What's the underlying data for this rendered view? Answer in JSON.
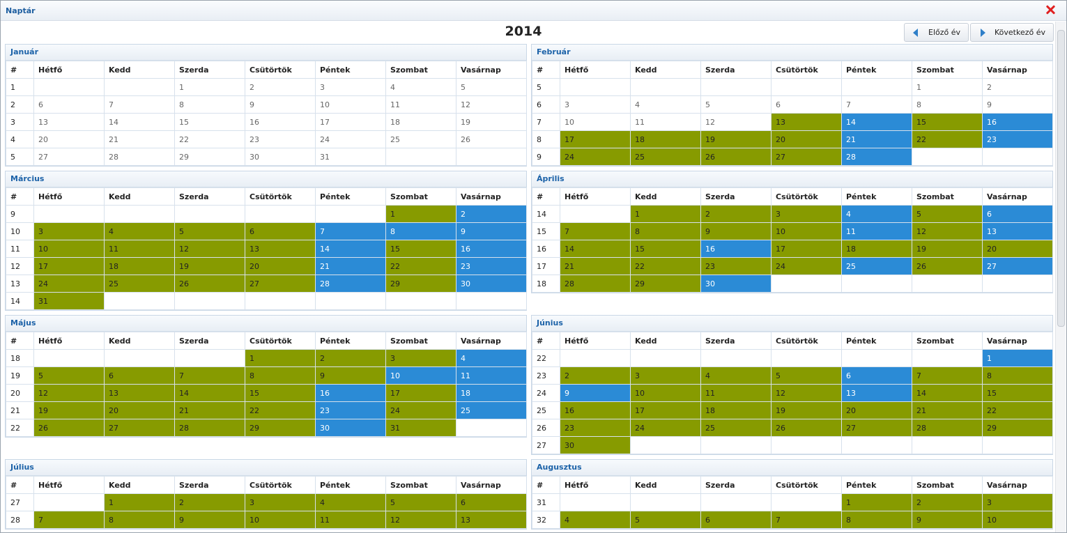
{
  "window": {
    "title": "Naptár"
  },
  "year": "2014",
  "nav": {
    "prev": "Előző év",
    "next": "Következő év"
  },
  "columns": [
    "#",
    "Hétfő",
    "Kedd",
    "Szerda",
    "Csütörtök",
    "Péntek",
    "Szombat",
    "Vasárnap"
  ],
  "legend_colors": {
    "g": "#879b00",
    "b": "#2b8bd6"
  },
  "months": [
    {
      "name": "Január",
      "weeks": [
        {
          "wk": "1",
          "days": [
            "",
            "",
            "1",
            "2",
            "3",
            "4",
            "5"
          ],
          "st": "wwwwwww"
        },
        {
          "wk": "2",
          "days": [
            "6",
            "7",
            "8",
            "9",
            "10",
            "11",
            "12"
          ],
          "st": "wwwwwww"
        },
        {
          "wk": "3",
          "days": [
            "13",
            "14",
            "15",
            "16",
            "17",
            "18",
            "19"
          ],
          "st": "wwwwwww"
        },
        {
          "wk": "4",
          "days": [
            "20",
            "21",
            "22",
            "23",
            "24",
            "25",
            "26"
          ],
          "st": "wwwwwww"
        },
        {
          "wk": "5",
          "days": [
            "27",
            "28",
            "29",
            "30",
            "31",
            "",
            ""
          ],
          "st": "wwwwwww"
        }
      ]
    },
    {
      "name": "Február",
      "weeks": [
        {
          "wk": "5",
          "days": [
            "",
            "",
            "",
            "",
            "",
            "1",
            "2"
          ],
          "st": "wwwwwww"
        },
        {
          "wk": "6",
          "days": [
            "3",
            "4",
            "5",
            "6",
            "7",
            "8",
            "9"
          ],
          "st": "wwwwwww"
        },
        {
          "wk": "7",
          "days": [
            "10",
            "11",
            "12",
            "13",
            "14",
            "15",
            "16"
          ],
          "st": "wwwgbgb"
        },
        {
          "wk": "8",
          "days": [
            "17",
            "18",
            "19",
            "20",
            "21",
            "22",
            "23"
          ],
          "st": "ggggbgb"
        },
        {
          "wk": "9",
          "days": [
            "24",
            "25",
            "26",
            "27",
            "28",
            "",
            ""
          ],
          "st": "ggggbww"
        }
      ]
    },
    {
      "name": "Március",
      "weeks": [
        {
          "wk": "9",
          "days": [
            "",
            "",
            "",
            "",
            "",
            "1",
            "2"
          ],
          "st": "wwwwwgb"
        },
        {
          "wk": "10",
          "days": [
            "3",
            "4",
            "5",
            "6",
            "7",
            "8",
            "9"
          ],
          "st": "ggggbbb"
        },
        {
          "wk": "11",
          "days": [
            "10",
            "11",
            "12",
            "13",
            "14",
            "15",
            "16"
          ],
          "st": "ggggbgb"
        },
        {
          "wk": "12",
          "days": [
            "17",
            "18",
            "19",
            "20",
            "21",
            "22",
            "23"
          ],
          "st": "ggggbgb"
        },
        {
          "wk": "13",
          "days": [
            "24",
            "25",
            "26",
            "27",
            "28",
            "29",
            "30"
          ],
          "st": "ggggbgb"
        },
        {
          "wk": "14",
          "days": [
            "31",
            "",
            "",
            "",
            "",
            "",
            ""
          ],
          "st": "gwwwwww"
        }
      ]
    },
    {
      "name": "Április",
      "weeks": [
        {
          "wk": "14",
          "days": [
            "",
            "1",
            "2",
            "3",
            "4",
            "5",
            "6"
          ],
          "st": "wgggbgb"
        },
        {
          "wk": "15",
          "days": [
            "7",
            "8",
            "9",
            "10",
            "11",
            "12",
            "13"
          ],
          "st": "ggggbgb"
        },
        {
          "wk": "16",
          "days": [
            "14",
            "15",
            "16",
            "17",
            "18",
            "19",
            "20"
          ],
          "st": "ggbgggg"
        },
        {
          "wk": "17",
          "days": [
            "21",
            "22",
            "23",
            "24",
            "25",
            "26",
            "27"
          ],
          "st": "ggggbgb"
        },
        {
          "wk": "18",
          "days": [
            "28",
            "29",
            "30",
            "",
            "",
            "",
            ""
          ],
          "st": "ggbwwww"
        }
      ]
    },
    {
      "name": "Május",
      "weeks": [
        {
          "wk": "18",
          "days": [
            "",
            "",
            "",
            "1",
            "2",
            "3",
            "4"
          ],
          "st": "wwwgggb"
        },
        {
          "wk": "19",
          "days": [
            "5",
            "6",
            "7",
            "8",
            "9",
            "10",
            "11"
          ],
          "st": "gggggbb"
        },
        {
          "wk": "20",
          "days": [
            "12",
            "13",
            "14",
            "15",
            "16",
            "17",
            "18"
          ],
          "st": "ggggbgb"
        },
        {
          "wk": "21",
          "days": [
            "19",
            "20",
            "21",
            "22",
            "23",
            "24",
            "25"
          ],
          "st": "ggggbgb"
        },
        {
          "wk": "22",
          "days": [
            "26",
            "27",
            "28",
            "29",
            "30",
            "31",
            ""
          ],
          "st": "ggggbgw"
        }
      ]
    },
    {
      "name": "Június",
      "weeks": [
        {
          "wk": "22",
          "days": [
            "",
            "",
            "",
            "",
            "",
            "",
            "1"
          ],
          "st": "wwwwwwb"
        },
        {
          "wk": "23",
          "days": [
            "2",
            "3",
            "4",
            "5",
            "6",
            "7",
            "8"
          ],
          "st": "ggggbgg"
        },
        {
          "wk": "24",
          "days": [
            "9",
            "10",
            "11",
            "12",
            "13",
            "14",
            "15"
          ],
          "st": "bgggbgg"
        },
        {
          "wk": "25",
          "days": [
            "16",
            "17",
            "18",
            "19",
            "20",
            "21",
            "22"
          ],
          "st": "ggggggg"
        },
        {
          "wk": "26",
          "days": [
            "23",
            "24",
            "25",
            "26",
            "27",
            "28",
            "29"
          ],
          "st": "ggggggg"
        },
        {
          "wk": "27",
          "days": [
            "30",
            "",
            "",
            "",
            "",
            "",
            ""
          ],
          "st": "gwwwwww"
        }
      ]
    },
    {
      "name": "Július",
      "weeks": [
        {
          "wk": "27",
          "days": [
            "",
            "1",
            "2",
            "3",
            "4",
            "5",
            "6"
          ],
          "st": "wgggggg"
        },
        {
          "wk": "28",
          "days": [
            "7",
            "8",
            "9",
            "10",
            "11",
            "12",
            "13"
          ],
          "st": "ggggggg"
        }
      ]
    },
    {
      "name": "Augusztus",
      "weeks": [
        {
          "wk": "31",
          "days": [
            "",
            "",
            "",
            "",
            "1",
            "2",
            "3"
          ],
          "st": "wwwwggg"
        },
        {
          "wk": "32",
          "days": [
            "4",
            "5",
            "6",
            "7",
            "8",
            "9",
            "10"
          ],
          "st": "ggggggg"
        }
      ]
    }
  ]
}
